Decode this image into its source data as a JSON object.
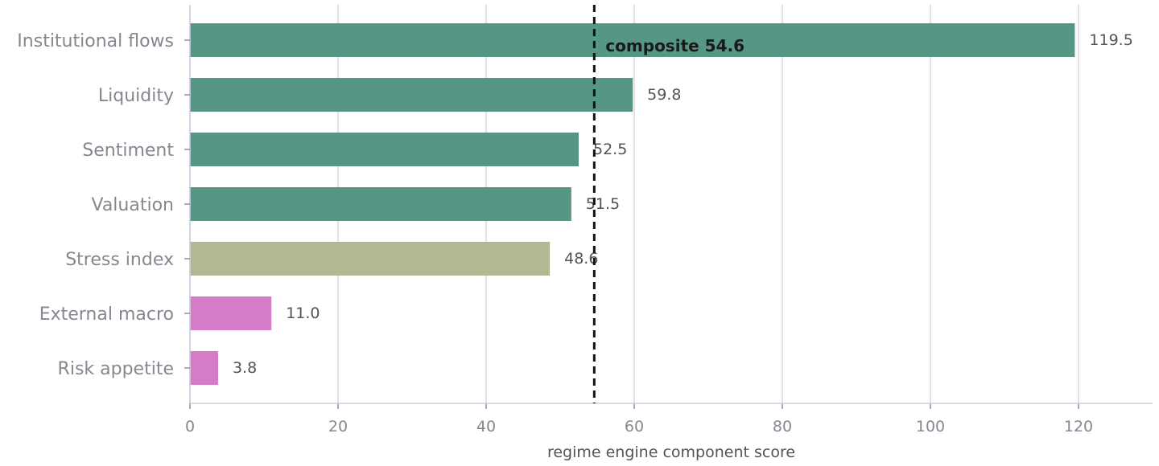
{
  "chart_data": {
    "type": "bar",
    "orientation": "horizontal",
    "categories": [
      "Institutional flows",
      "Liquidity",
      "Sentiment",
      "Valuation",
      "Stress index",
      "External macro",
      "Risk appetite"
    ],
    "values": [
      119.5,
      59.8,
      52.5,
      51.5,
      48.6,
      11.0,
      3.8
    ],
    "value_labels": [
      "119.5",
      "59.8",
      "52.5",
      "51.5",
      "48.6",
      "11.0",
      "3.8"
    ],
    "bar_colors": [
      "#569685",
      "#569685",
      "#569685",
      "#569685",
      "#b2b992",
      "#d47cc8",
      "#d47cc8"
    ],
    "xlabel": "regime engine component score",
    "xlim": [
      0,
      130
    ],
    "xticks": [
      0,
      20,
      40,
      60,
      80,
      100,
      120
    ],
    "xtick_labels": [
      "0",
      "20",
      "40",
      "60",
      "80",
      "100",
      "120"
    ],
    "grid": "vertical",
    "reference_line": {
      "value": 54.6,
      "label": "composite 54.6",
      "style": "dashed",
      "color": "#111111"
    }
  }
}
